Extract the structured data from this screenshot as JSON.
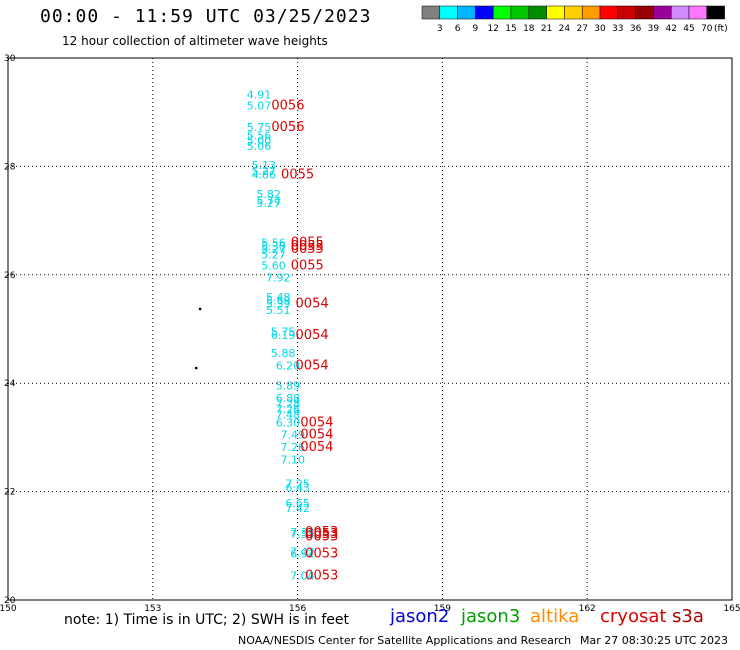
{
  "title": "00:00 - 11:59 UTC 03/25/2023",
  "subtitle": "12 hour collection of altimeter wave heights",
  "colorbar": {
    "labels": [
      "3",
      "6",
      "9",
      "12",
      "15",
      "18",
      "21",
      "24",
      "27",
      "30",
      "33",
      "36",
      "39",
      "42",
      "45",
      "70"
    ],
    "unit": "(ft)",
    "colors": [
      "#808080",
      "#00ffff",
      "#00b4ff",
      "#0000ff",
      "#00ff00",
      "#00c800",
      "#008c00",
      "#ffff00",
      "#ffd000",
      "#ff9c00",
      "#ff0000",
      "#c80000",
      "#960000",
      "#9a009a",
      "#d28cff",
      "#ff78ff",
      "#000000"
    ]
  },
  "note": "note: 1) Time is in UTC; 2) SWH is in feet",
  "satellites": [
    {
      "name": "jason2",
      "color": "#0000dd"
    },
    {
      "name": "jason3",
      "color": "#00a000"
    },
    {
      "name": "altika",
      "color": "#ff8c00"
    },
    {
      "name": "cryosat",
      "color": "#e00000"
    },
    {
      "name": "s3a",
      "color": "#b00000"
    }
  ],
  "credit": "NOAA/NESDIS Center for Satellite Applications and Research",
  "stamp": "Mar 27 08:30:25 UTC 2023",
  "chart_data": {
    "type": "scatter",
    "xlim": [
      150,
      165
    ],
    "ylim": [
      20,
      30
    ],
    "x_ticks": [
      "150",
      "153",
      "156",
      "159",
      "162",
      "165"
    ],
    "y_ticks": [
      "20",
      "22",
      "24",
      "26",
      "28",
      "30"
    ],
    "grid": true,
    "wave_color": "#00d8e8",
    "time_color": "#e00000",
    "wave_heights": [
      {
        "lon": 155.2,
        "lat": 29.25,
        "v": "4.91"
      },
      {
        "lon": 155.2,
        "lat": 29.05,
        "v": "5.07"
      },
      {
        "lon": 155.2,
        "lat": 28.65,
        "v": "5.75"
      },
      {
        "lon": 155.2,
        "lat": 28.5,
        "v": "5.56"
      },
      {
        "lon": 155.2,
        "lat": 28.4,
        "v": "5.00"
      },
      {
        "lon": 155.2,
        "lat": 28.3,
        "v": "5.06"
      },
      {
        "lon": 155.3,
        "lat": 27.95,
        "v": "5.13"
      },
      {
        "lon": 155.3,
        "lat": 27.84,
        "v": "5.27"
      },
      {
        "lon": 155.3,
        "lat": 27.78,
        "v": "4.86"
      },
      {
        "lon": 155.4,
        "lat": 27.42,
        "v": "5.82"
      },
      {
        "lon": 155.4,
        "lat": 27.3,
        "v": "5.74"
      },
      {
        "lon": 155.4,
        "lat": 27.25,
        "v": "5.27"
      },
      {
        "lon": 155.5,
        "lat": 26.52,
        "v": "5.56"
      },
      {
        "lon": 155.5,
        "lat": 26.46,
        "v": "5.30"
      },
      {
        "lon": 155.5,
        "lat": 26.4,
        "v": "5.27"
      },
      {
        "lon": 155.5,
        "lat": 26.3,
        "v": "5.27"
      },
      {
        "lon": 155.5,
        "lat": 26.1,
        "v": "5.60"
      },
      {
        "lon": 155.6,
        "lat": 25.88,
        "v": "7.92"
      },
      {
        "lon": 155.6,
        "lat": 25.52,
        "v": "5.48"
      },
      {
        "lon": 155.6,
        "lat": 25.45,
        "v": "5.69"
      },
      {
        "lon": 155.6,
        "lat": 25.4,
        "v": "5.39"
      },
      {
        "lon": 155.6,
        "lat": 25.28,
        "v": "5.51"
      },
      {
        "lon": 155.7,
        "lat": 24.88,
        "v": "5.75"
      },
      {
        "lon": 155.7,
        "lat": 24.82,
        "v": "6.19"
      },
      {
        "lon": 155.7,
        "lat": 24.48,
        "v": "5.88"
      },
      {
        "lon": 155.8,
        "lat": 24.25,
        "v": "6.20"
      },
      {
        "lon": 155.8,
        "lat": 23.88,
        "v": "5.89"
      },
      {
        "lon": 155.8,
        "lat": 23.65,
        "v": "6.88"
      },
      {
        "lon": 155.8,
        "lat": 23.55,
        "v": "7.28"
      },
      {
        "lon": 155.8,
        "lat": 23.45,
        "v": "7.26"
      },
      {
        "lon": 155.8,
        "lat": 23.35,
        "v": "7.48"
      },
      {
        "lon": 155.8,
        "lat": 23.2,
        "v": "6.30"
      },
      {
        "lon": 155.9,
        "lat": 22.98,
        "v": "7.49"
      },
      {
        "lon": 155.9,
        "lat": 22.75,
        "v": "7.26"
      },
      {
        "lon": 155.9,
        "lat": 22.52,
        "v": "7.10"
      },
      {
        "lon": 156.0,
        "lat": 22.08,
        "v": "7.25"
      },
      {
        "lon": 156.0,
        "lat": 22.0,
        "v": "6.43"
      },
      {
        "lon": 156.0,
        "lat": 21.72,
        "v": "6.65"
      },
      {
        "lon": 156.0,
        "lat": 21.62,
        "v": "7.42"
      },
      {
        "lon": 156.1,
        "lat": 21.18,
        "v": "7.33"
      },
      {
        "lon": 156.1,
        "lat": 21.14,
        "v": "7.55"
      },
      {
        "lon": 156.1,
        "lat": 20.82,
        "v": "7.42"
      },
      {
        "lon": 156.1,
        "lat": 20.78,
        "v": "6.92"
      },
      {
        "lon": 156.1,
        "lat": 20.38,
        "v": "7.04"
      }
    ],
    "times": [
      {
        "lon": 155.8,
        "lat": 29.05,
        "v": "0056"
      },
      {
        "lon": 155.8,
        "lat": 28.65,
        "v": "0056"
      },
      {
        "lon": 156.0,
        "lat": 27.78,
        "v": "0055"
      },
      {
        "lon": 156.2,
        "lat": 26.52,
        "v": "0055"
      },
      {
        "lon": 156.2,
        "lat": 26.46,
        "v": "0055"
      },
      {
        "lon": 156.2,
        "lat": 26.4,
        "v": "0055"
      },
      {
        "lon": 156.2,
        "lat": 26.1,
        "v": "0055"
      },
      {
        "lon": 156.3,
        "lat": 25.4,
        "v": "0054"
      },
      {
        "lon": 156.3,
        "lat": 24.82,
        "v": "0054"
      },
      {
        "lon": 156.3,
        "lat": 24.25,
        "v": "0054"
      },
      {
        "lon": 156.4,
        "lat": 23.2,
        "v": "0054"
      },
      {
        "lon": 156.4,
        "lat": 22.98,
        "v": "0054"
      },
      {
        "lon": 156.4,
        "lat": 22.75,
        "v": "0054"
      },
      {
        "lon": 156.5,
        "lat": 21.18,
        "v": "0053"
      },
      {
        "lon": 156.5,
        "lat": 21.14,
        "v": "0053"
      },
      {
        "lon": 156.5,
        "lat": 21.1,
        "v": "0053"
      },
      {
        "lon": 156.5,
        "lat": 20.78,
        "v": "0053"
      },
      {
        "lon": 156.5,
        "lat": 20.38,
        "v": "0053"
      }
    ],
    "markers": [
      {
        "lon": 153.98,
        "lat": 25.37
      },
      {
        "lon": 153.9,
        "lat": 24.28
      }
    ]
  }
}
